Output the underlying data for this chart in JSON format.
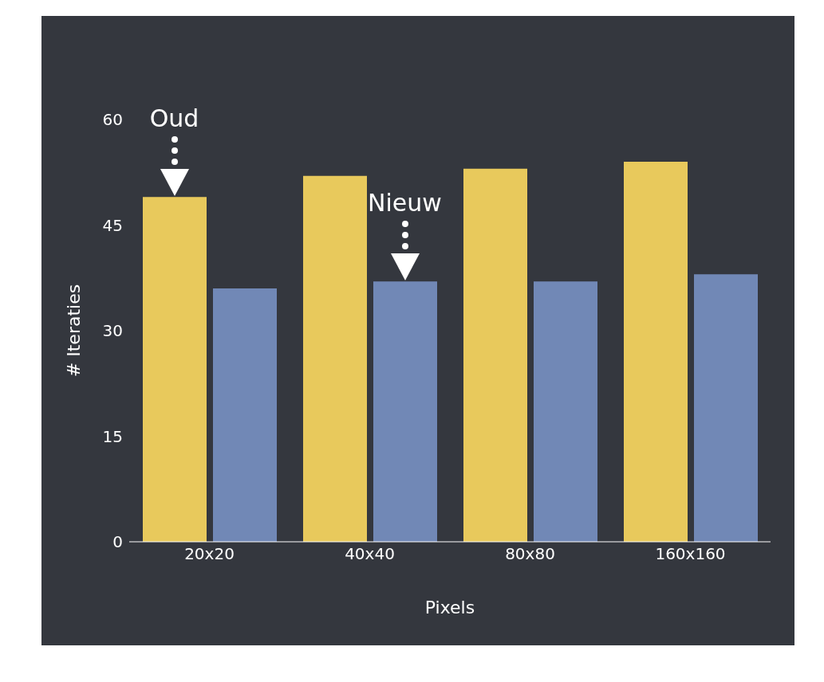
{
  "chart_data": {
    "type": "bar",
    "xlabel": "Pixels",
    "ylabel": "# Iteraties",
    "categories": [
      "20x20",
      "40x40",
      "80x80",
      "160x160"
    ],
    "series": [
      {
        "color": "#e8c95c",
        "values": [
          49,
          52,
          53,
          54
        ]
      },
      {
        "color": "#7188b6",
        "values": [
          36,
          37,
          37,
          38
        ]
      }
    ],
    "ylim": [
      0,
      60
    ],
    "yticks": [
      0,
      15,
      30,
      45,
      60
    ],
    "grid": false,
    "legend": false,
    "annotations": [
      {
        "text": "Oud",
        "x": "20x20",
        "y": 49
      },
      {
        "text": "Nieuw",
        "x": "40x40",
        "y": 37
      }
    ]
  }
}
